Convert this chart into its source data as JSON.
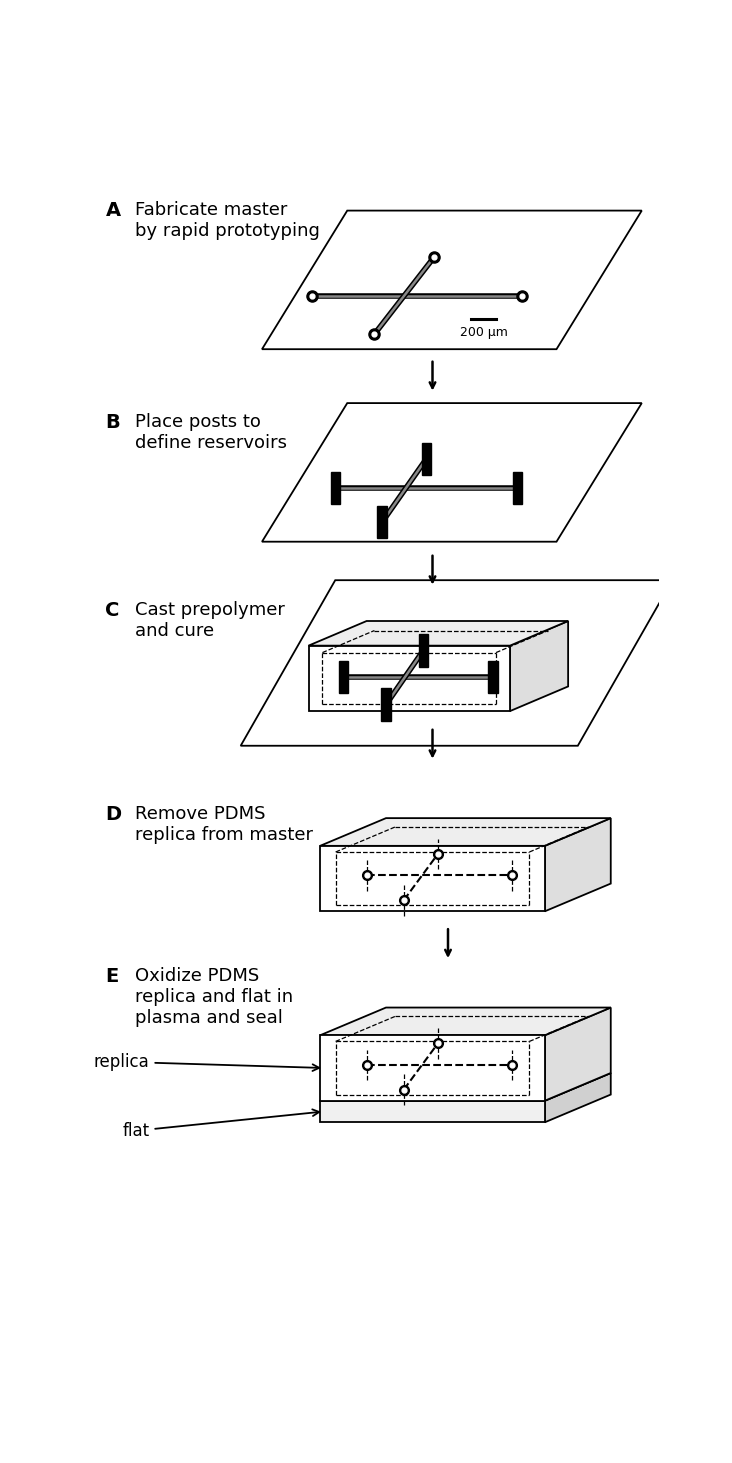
{
  "bg_color": "#ffffff",
  "text_color": "#000000",
  "panel_labels": [
    "A",
    "B",
    "C",
    "D",
    "E"
  ],
  "panel_titles": [
    "Fabricate master\nby rapid prototyping",
    "Place posts to\ndefine reservoirs",
    "Cast prepolymer\nand cure",
    "Remove PDMS\nreplica from master",
    "Oxidize PDMS\nreplica and flat in\nplasma and seal"
  ],
  "label_fontsize": 14,
  "title_fontsize": 13,
  "scale_bar_text": "200 μm",
  "replica_label": "replica",
  "flat_label": "flat",
  "fig_w": 7.32,
  "fig_h": 14.63
}
